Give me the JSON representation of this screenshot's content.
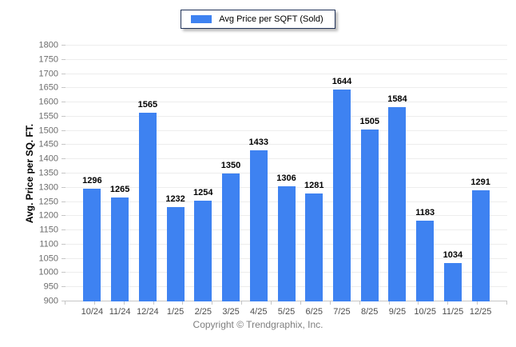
{
  "legend": {
    "label": "Avg Price per SQFT (Sold)",
    "swatch_color": "#3e82f1"
  },
  "footer": {
    "text": "Copyright © Trendgraphix, Inc."
  },
  "chart_data": {
    "type": "bar",
    "categories": [
      "10/24",
      "11/24",
      "12/24",
      "1/25",
      "2/25",
      "3/25",
      "4/25",
      "5/25",
      "6/25",
      "7/25",
      "8/25",
      "9/25",
      "10/25",
      "11/25",
      "12/25"
    ],
    "values": [
      1296,
      1265,
      1565,
      1232,
      1254,
      1350,
      1433,
      1306,
      1281,
      1644,
      1505,
      1584,
      1183,
      1034,
      1291
    ],
    "title": "",
    "xlabel": "",
    "ylabel": "Avg. Price per SQ. FT.",
    "ylim": [
      900,
      1800
    ],
    "ytick_step": 50,
    "bar_color": "#3e82f1",
    "grid": true,
    "value_labels": true,
    "legend": "Avg Price per SQFT (Sold)",
    "legend_position": "top-center"
  }
}
